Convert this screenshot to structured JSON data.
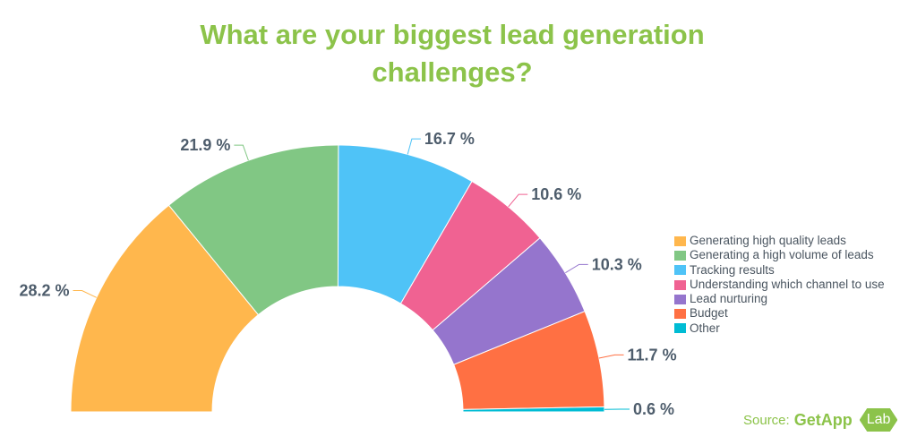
{
  "chart_data": {
    "type": "pie",
    "variant": "semi-donut",
    "title": "What are your biggest lead generation challenges?",
    "categories": [
      "Generating high quality leads",
      "Generating a high volume of leads",
      "Tracking results",
      "Understanding which channel to use",
      "Lead nurturing",
      "Budget",
      "Other"
    ],
    "values": [
      28.2,
      21.9,
      16.7,
      10.6,
      10.3,
      11.7,
      0.6
    ],
    "data_labels": [
      "28.2 %",
      "21.9 %",
      "16.7 %",
      "10.6 %",
      "10.3 %",
      "11.7 %",
      "0.6 %"
    ],
    "colors": [
      "#ffb74d",
      "#81c784",
      "#4fc3f7",
      "#f06292",
      "#9575cd",
      "#ff7043",
      "#00bcd4"
    ],
    "legend_position": "right"
  },
  "source": {
    "prefix": "Source:",
    "brand": "GetApp",
    "lab": "Lab"
  }
}
